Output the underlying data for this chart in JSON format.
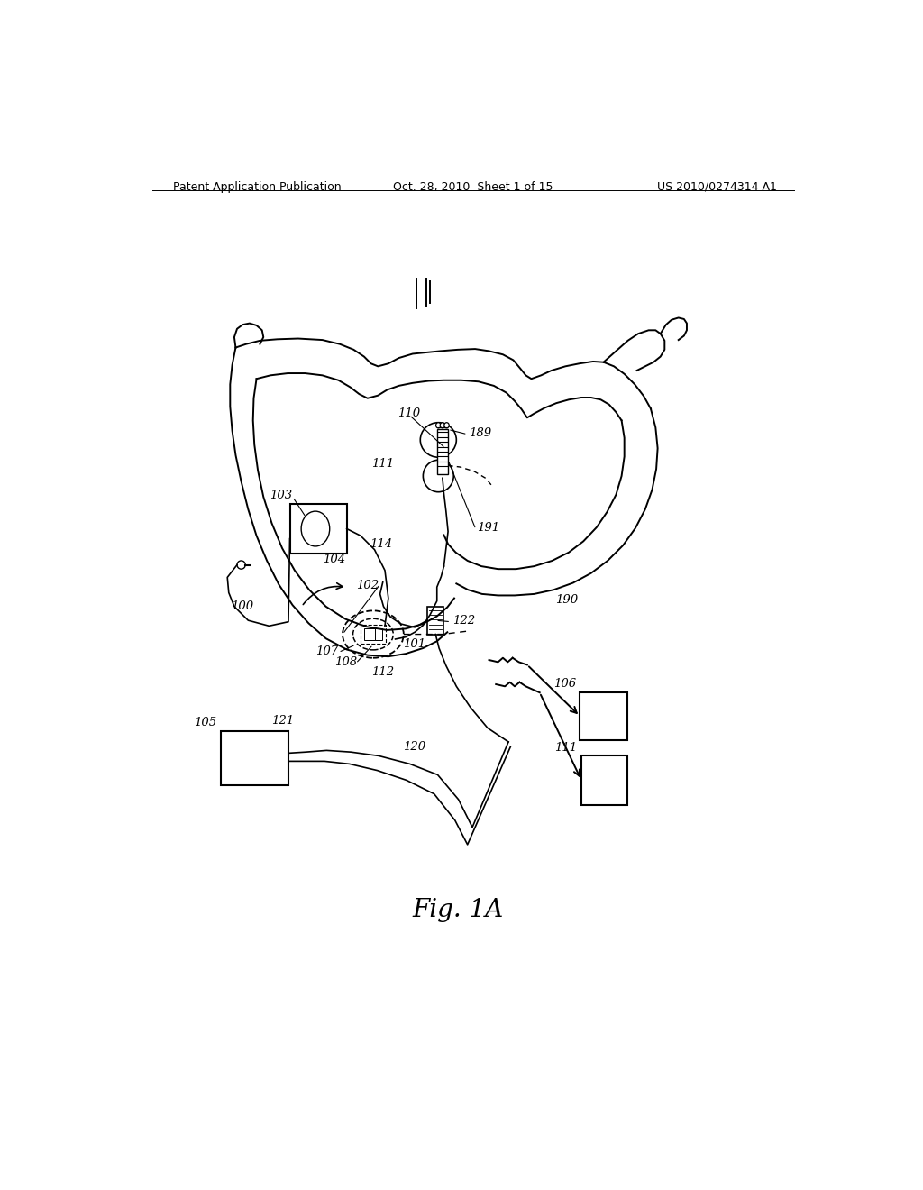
{
  "bg_color": "#ffffff",
  "header_left": "Patent Application Publication",
  "header_mid": "Oct. 28, 2010  Sheet 1 of 15",
  "header_right": "US 2010/0274314 A1",
  "fig_label": "Fig. 1A"
}
